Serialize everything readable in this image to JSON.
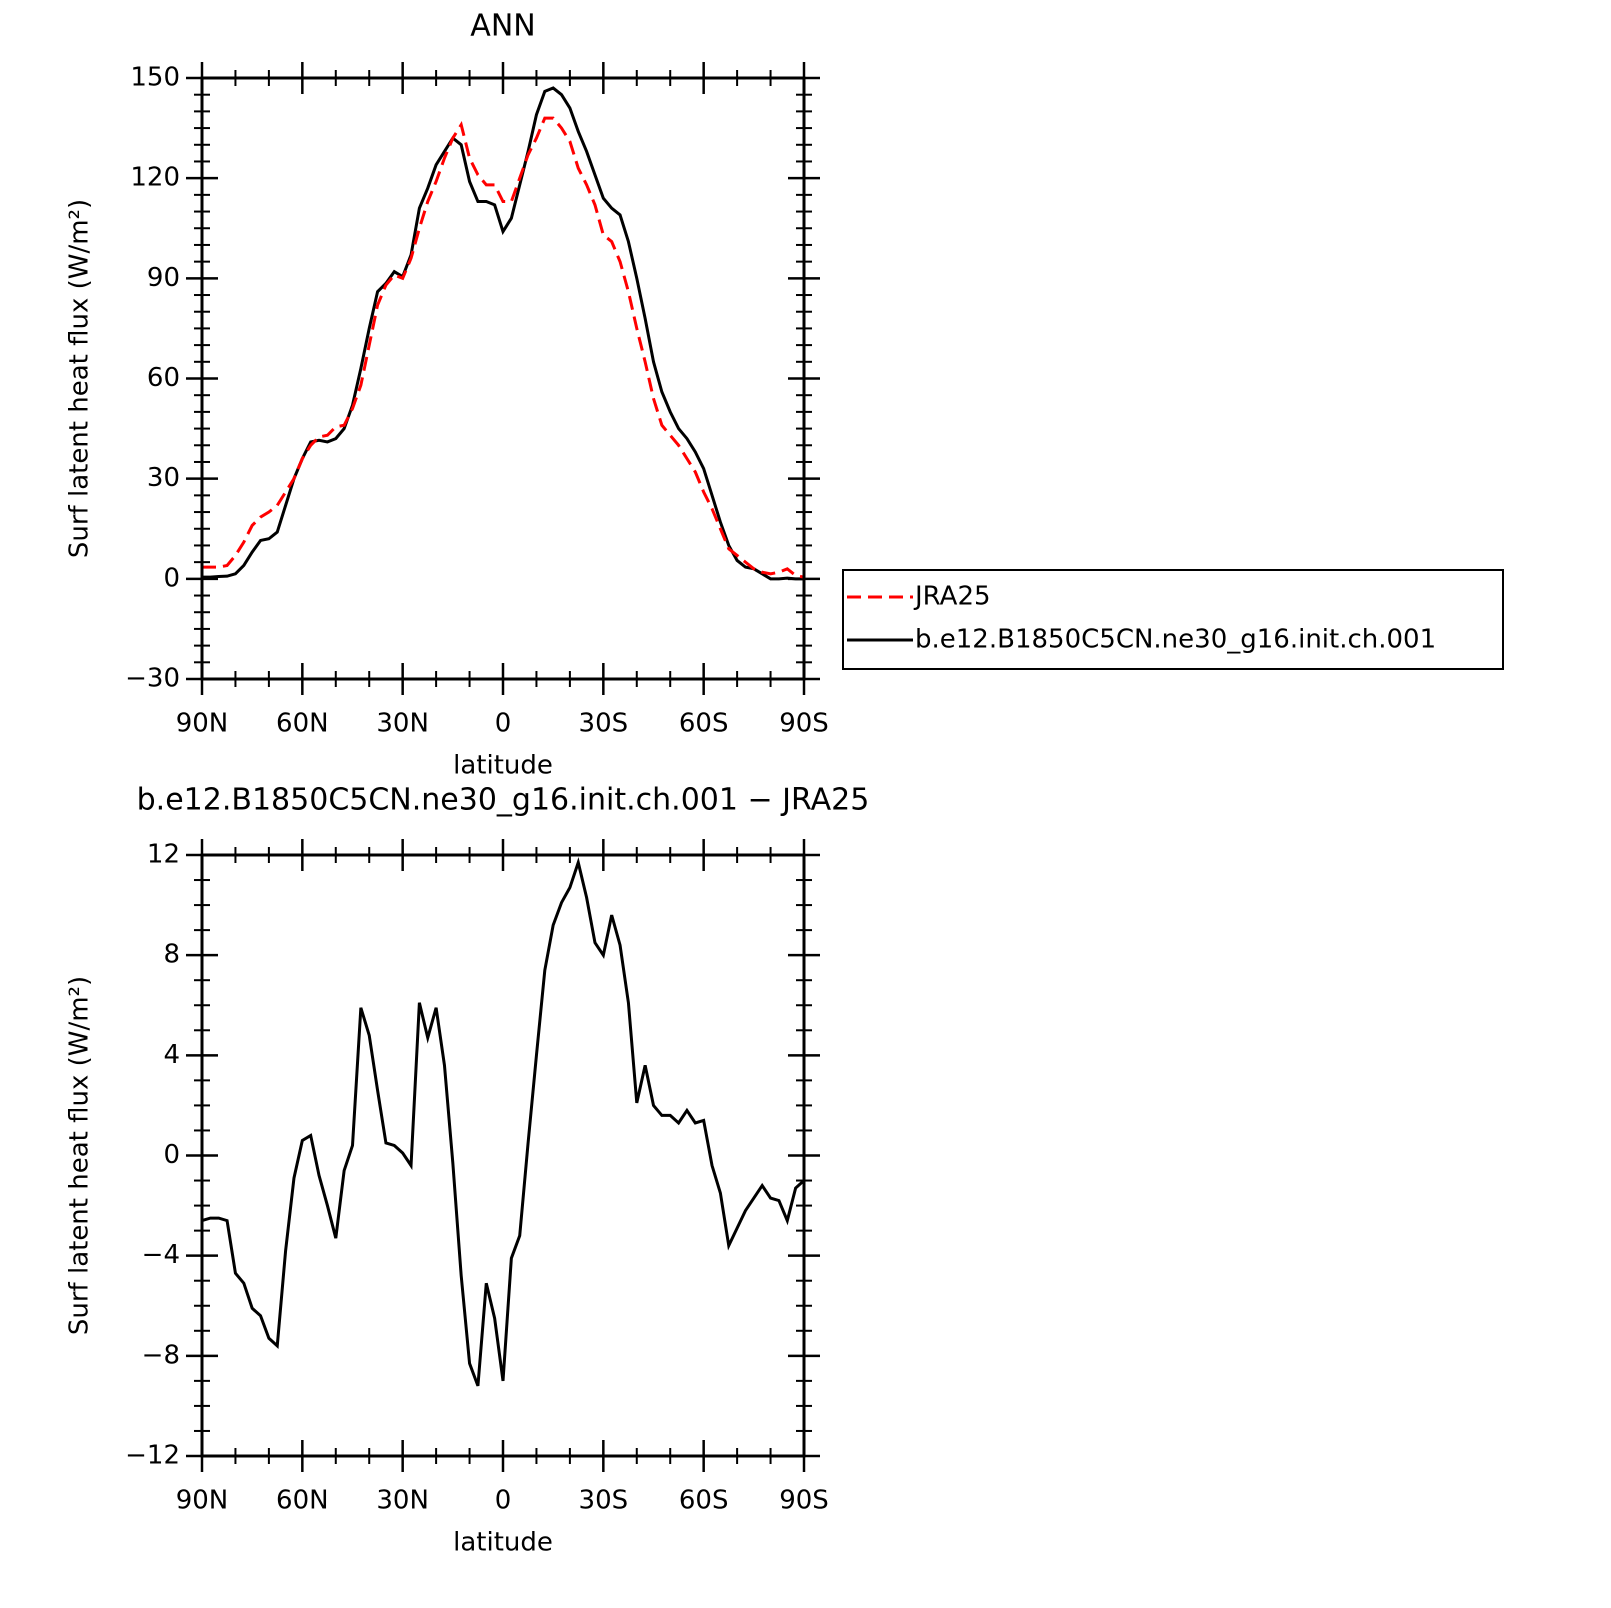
{
  "chart_data": [
    {
      "type": "line",
      "title": "ANN",
      "y_label": "Surf latent heat flux (W/m²)",
      "x_label": "latitude",
      "x": [
        90,
        87.5,
        85,
        82.5,
        80,
        77.5,
        75,
        72.5,
        70,
        67.5,
        65,
        62.5,
        60,
        57.5,
        55,
        52.5,
        50,
        47.5,
        45,
        42.5,
        40,
        37.5,
        35,
        32.5,
        30,
        27.5,
        25,
        22.5,
        20,
        17.5,
        15,
        12.5,
        10,
        7.5,
        5,
        2.5,
        0,
        -2.5,
        -5,
        -7.5,
        -10,
        -12.5,
        -15,
        -17.5,
        -20,
        -22.5,
        -25,
        -27.5,
        -30,
        -32.5,
        -35,
        -37.5,
        -40,
        -42.5,
        -45,
        -47.5,
        -50,
        -52.5,
        -55,
        -57.5,
        -60,
        -62.5,
        -65,
        -67.5,
        -70,
        -72.5,
        -75,
        -77.5,
        -80,
        -82.5,
        -85,
        -87.5,
        -90
      ],
      "xlim": [
        90,
        -90
      ],
      "xticks": [
        {
          "value": 90,
          "label": "90N"
        },
        {
          "value": 60,
          "label": "60N"
        },
        {
          "value": 30,
          "label": "30N"
        },
        0,
        {
          "value": -30,
          "label": "30S"
        },
        {
          "value": -60,
          "label": "60S"
        },
        {
          "value": -90,
          "label": "90S"
        }
      ],
      "ylim": [
        -30,
        150
      ],
      "yticks": [
        {
          "value": -30,
          "label": "−30"
        },
        0,
        30,
        60,
        90,
        120,
        150
      ],
      "legend": "right",
      "series": [
        {
          "name": "JRA25",
          "color": "#ff0000",
          "dash": "dashed",
          "values": [
            3.5,
            3.5,
            3.5,
            4,
            7,
            11,
            16,
            18.5,
            20,
            22,
            26,
            30,
            36,
            40,
            42.5,
            43,
            45.5,
            46,
            51,
            58,
            70,
            82,
            88,
            91,
            90,
            96,
            105,
            113,
            119,
            126,
            132,
            136,
            126,
            121,
            118,
            118,
            113,
            113,
            120,
            127,
            132,
            138,
            138,
            135,
            131,
            123,
            118,
            112,
            103,
            101,
            95,
            86,
            75,
            65,
            54,
            46,
            43,
            40,
            36,
            32,
            26,
            21,
            15,
            9,
            7,
            5,
            3,
            2,
            1.5,
            2,
            3,
            1,
            0.5
          ]
        },
        {
          "name": "b.e12.B1850C5CN.ne30_g16.init.ch.001",
          "color": "#000000",
          "values": [
            0.5,
            0.5,
            0.7,
            0.8,
            1.5,
            4,
            8,
            11.5,
            12,
            14,
            22,
            30,
            36,
            41,
            41.5,
            41,
            42,
            45,
            52,
            63,
            75,
            86,
            88.5,
            92,
            90.5,
            97,
            111,
            117,
            124,
            128,
            132,
            130,
            119,
            113,
            113,
            112,
            104,
            108,
            118,
            128,
            139,
            146,
            147,
            145,
            141,
            134,
            128,
            121,
            114,
            111,
            109,
            101,
            90,
            78,
            65,
            56,
            50,
            45,
            42,
            38,
            33,
            25,
            17,
            10,
            5.5,
            3.5,
            3,
            1.5,
            0,
            0,
            0.2,
            0,
            0
          ]
        }
      ]
    },
    {
      "type": "line",
      "title": "b.e12.B1850C5CN.ne30_g16.init.ch.001 − JRA25",
      "y_label": "Surf latent heat flux (W/m²)",
      "x_label": "latitude",
      "x": [
        90,
        87.5,
        85,
        82.5,
        80,
        77.5,
        75,
        72.5,
        70,
        67.5,
        65,
        62.5,
        60,
        57.5,
        55,
        52.5,
        50,
        47.5,
        45,
        42.5,
        40,
        37.5,
        35,
        32.5,
        30,
        27.5,
        25,
        22.5,
        20,
        17.5,
        15,
        12.5,
        10,
        7.5,
        5,
        2.5,
        0,
        -2.5,
        -5,
        -7.5,
        -10,
        -12.5,
        -15,
        -17.5,
        -20,
        -22.5,
        -25,
        -27.5,
        -30,
        -32.5,
        -35,
        -37.5,
        -40,
        -42.5,
        -45,
        -47.5,
        -50,
        -52.5,
        -55,
        -57.5,
        -60,
        -62.5,
        -65,
        -67.5,
        -70,
        -72.5,
        -75,
        -77.5,
        -80,
        -82.5,
        -85,
        -87.5,
        -90
      ],
      "xlim": [
        90,
        -90
      ],
      "xticks": [
        {
          "value": 90,
          "label": "90N"
        },
        {
          "value": 60,
          "label": "60N"
        },
        {
          "value": 30,
          "label": "30N"
        },
        0,
        {
          "value": -30,
          "label": "30S"
        },
        {
          "value": -60,
          "label": "60S"
        },
        {
          "value": -90,
          "label": "90S"
        }
      ],
      "ylim": [
        -12,
        12
      ],
      "yticks": [
        {
          "value": -12,
          "label": "−12"
        },
        {
          "value": -8,
          "label": "−8"
        },
        {
          "value": -4,
          "label": "−4"
        },
        0,
        4,
        8,
        12
      ],
      "color": "#000000",
      "values": [
        -2.6,
        -2.5,
        -2.5,
        -2.6,
        -4.7,
        -5.1,
        -6.1,
        -6.4,
        -7.3,
        -7.6,
        -3.8,
        -0.9,
        0.6,
        0.8,
        -0.8,
        -2,
        -3.3,
        -0.6,
        0.4,
        5.9,
        4.8,
        2.6,
        0.5,
        0.4,
        0.1,
        -0.4,
        6.1,
        4.7,
        5.9,
        3.6,
        -0.3,
        -4.8,
        -8.3,
        -9.2,
        -5.1,
        -6.5,
        -9,
        -4.1,
        -3.2,
        0.5,
        4,
        7.4,
        9.2,
        10.1,
        10.7,
        11.7,
        10.3,
        8.5,
        8,
        9.6,
        8.4,
        6.1,
        2.1,
        3.6,
        2,
        1.6,
        1.6,
        1.3,
        1.8,
        1.3,
        1.4,
        -0.4,
        -1.5,
        -3.6,
        -2.9,
        -2.2,
        -1.7,
        -1.2,
        -1.7,
        -1.8,
        -2.6,
        -1.3,
        -1
      ]
    }
  ]
}
